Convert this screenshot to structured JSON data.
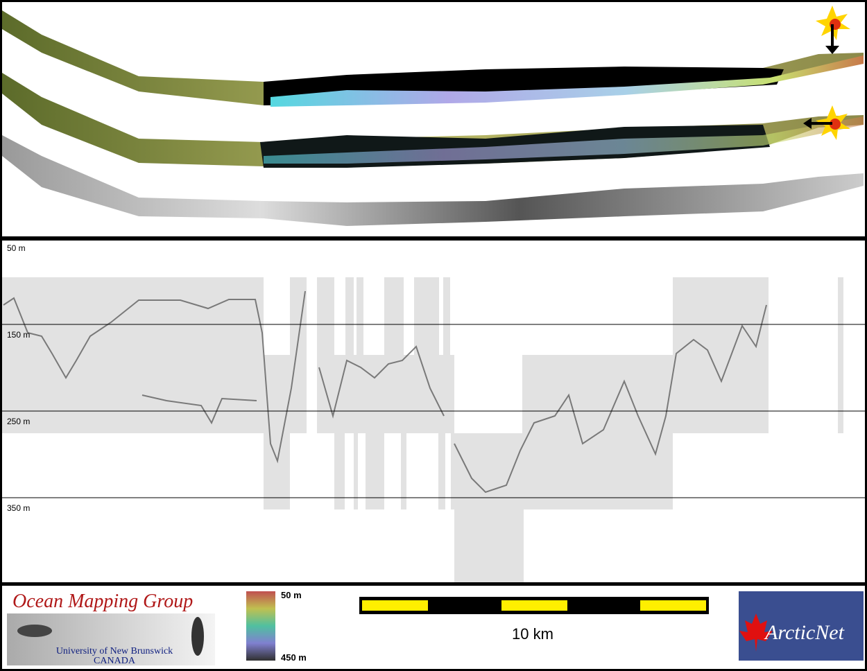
{
  "depth_labels": [
    "50 m",
    "150 m",
    "250 m",
    "350 m"
  ],
  "logo_left": {
    "title": "Ocean Mapping Group",
    "line1": "University of New Brunswick",
    "line2": "CANADA"
  },
  "colorbar": {
    "top": "50 m",
    "bottom": "450 m"
  },
  "scale_bar": {
    "label": "10 km"
  },
  "logo_right": {
    "title": "ArcticNet"
  }
}
